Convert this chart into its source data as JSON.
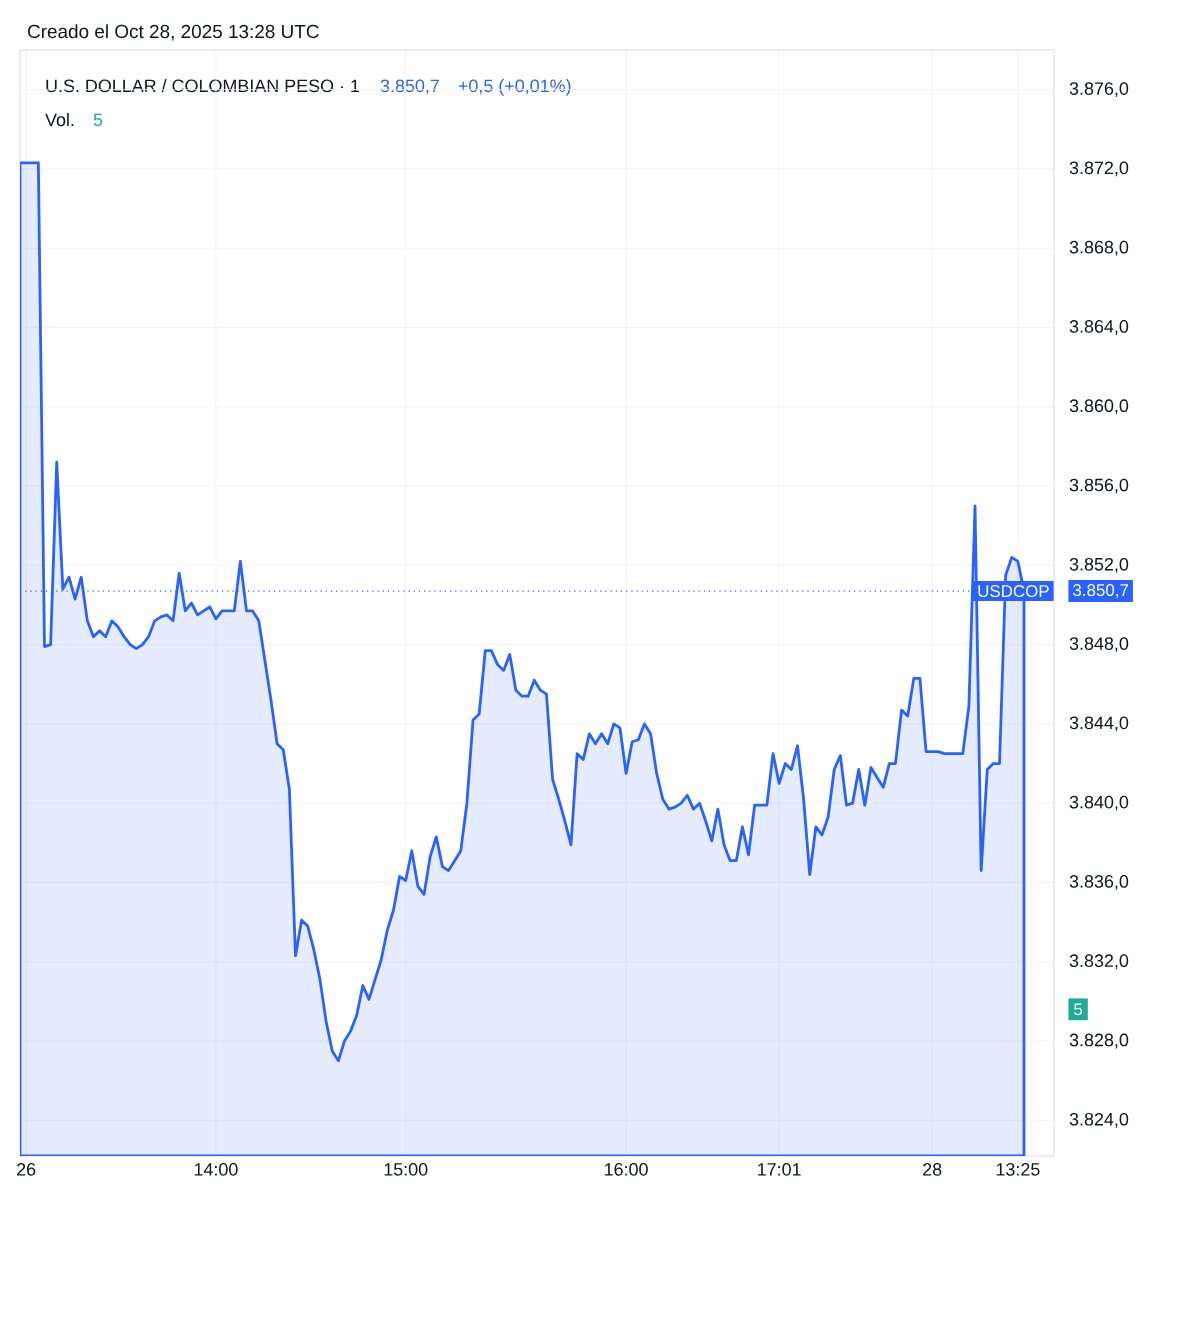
{
  "chart_data": {
    "type": "area",
    "title": "U.S. DOLLAR / COLOMBIAN PESO · 1",
    "annotations": [
      "Creado el Oct 28, 2025 13:28 UTC",
      "3.850,7",
      "+0,5 (+0,01%)",
      "Vol.",
      "5",
      "3.850,7",
      "5"
    ],
    "categories": [
      null,
      "26",
      null,
      null,
      null,
      null,
      null,
      null,
      null,
      null,
      null,
      null,
      null,
      null,
      null,
      null,
      null,
      null,
      null,
      null,
      null,
      null,
      null,
      null,
      null,
      null,
      null,
      null,
      null,
      null,
      null,
      null,
      "14:00",
      null,
      null,
      null,
      null,
      null,
      null,
      null,
      null,
      null,
      null,
      null,
      null,
      null,
      null,
      null,
      null,
      null,
      null,
      null,
      null,
      null,
      null,
      null,
      null,
      null,
      null,
      null,
      null,
      null,
      null,
      "15:00",
      null,
      null,
      null,
      null,
      null,
      null,
      null,
      null,
      null,
      null,
      null,
      null,
      null,
      null,
      null,
      null,
      null,
      null,
      null,
      null,
      null,
      null,
      null,
      null,
      null,
      null,
      null,
      null,
      null,
      null,
      null,
      null,
      null,
      null,
      null,
      "16:00",
      null,
      null,
      null,
      null,
      null,
      null,
      null,
      null,
      null,
      null,
      null,
      null,
      null,
      null,
      null,
      null,
      null,
      null,
      null,
      null,
      null,
      null,
      null,
      null,
      "17:01",
      null,
      null,
      null,
      null,
      null,
      null,
      null,
      null,
      null,
      null,
      null,
      null,
      null,
      null,
      null,
      null,
      null,
      null,
      null,
      null,
      null,
      null,
      null,
      null,
      "28",
      null,
      null,
      null,
      null,
      null,
      null,
      null,
      null,
      null,
      null,
      null,
      null,
      null,
      "13:25",
      null
    ],
    "series": [
      {
        "color": "#2962ff",
        "values": [
          3872.3,
          3872.3,
          3872.3,
          3872.3,
          3847.9,
          3848.0,
          3857.2,
          3850.8,
          3851.4,
          3850.3,
          3851.4,
          3849.2,
          3848.4,
          3848.7,
          3848.4,
          3849.2,
          3848.9,
          3848.4,
          3848.0,
          3847.8,
          3848.0,
          3848.4,
          3849.2,
          3849.4,
          3849.5,
          3849.2,
          3851.6,
          3849.7,
          3850.1,
          3849.5,
          3849.7,
          3849.9,
          3849.3,
          3849.7,
          3849.7,
          3849.7,
          3852.2,
          3849.7,
          3849.7,
          3849.2,
          3847.2,
          3845.2,
          3843.0,
          3842.7,
          3840.7,
          3832.3,
          3834.1,
          3833.8,
          3832.6,
          3831.1,
          3829.0,
          3827.5,
          3827.0,
          3828.0,
          3828.5,
          3829.3,
          3830.8,
          3830.1,
          3831.1,
          3832.1,
          3833.6,
          3834.6,
          3836.3,
          3836.1,
          3837.6,
          3835.8,
          3835.4,
          3837.3,
          3838.3,
          3836.8,
          3836.6,
          3837.1,
          3837.6,
          3840.0,
          3844.2,
          3844.5,
          3847.7,
          3847.7,
          3847.0,
          3846.7,
          3847.5,
          3845.7,
          3845.4,
          3845.4,
          3846.2,
          3845.7,
          3845.5,
          3841.2,
          3840.2,
          3839.1,
          3837.9,
          3842.5,
          3842.2,
          3843.5,
          3843.0,
          3843.5,
          3843.0,
          3844.0,
          3843.8,
          3841.5,
          3843.1,
          3843.2,
          3844.0,
          3843.5,
          3841.5,
          3840.2,
          3839.7,
          3839.8,
          3840.0,
          3840.4,
          3839.7,
          3840.0,
          3839.1,
          3838.1,
          3839.7,
          3837.9,
          3837.1,
          3837.1,
          3838.8,
          3837.4,
          3839.9,
          3839.9,
          3839.9,
          3842.5,
          3841.0,
          3842.0,
          3841.7,
          3842.9,
          3840.2,
          3836.4,
          3838.8,
          3838.4,
          3839.3,
          3841.7,
          3842.4,
          3839.9,
          3840.0,
          3841.7,
          3839.9,
          3841.8,
          3841.3,
          3840.8,
          3842.0,
          3842.0,
          3844.7,
          3844.4,
          3846.3,
          3846.3,
          3842.6,
          3842.6,
          3842.6,
          3842.5,
          3842.5,
          3842.5,
          3842.5,
          3844.9,
          3855.0,
          3836.6,
          3841.7,
          3842.0,
          3842.0,
          3851.5,
          3852.4,
          3852.2,
          3850.7
        ]
      }
    ],
    "ylim": [
      3822.2,
      3878.0
    ],
    "yticks": [
      {
        "value": 3824,
        "label": "3.824,0"
      },
      {
        "value": 3828,
        "label": "3.828,0"
      },
      {
        "value": 3832,
        "label": "3.832,0"
      },
      {
        "value": 3836,
        "label": "3.836,0"
      },
      {
        "value": 3840,
        "label": "3.840,0"
      },
      {
        "value": 3844,
        "label": "3.844,0"
      },
      {
        "value": 3848,
        "label": "3.848,0"
      },
      {
        "value": 3852,
        "label": "3.852,0"
      },
      {
        "value": 3856,
        "label": "3.856,0"
      },
      {
        "value": 3860,
        "label": "3.860,0"
      },
      {
        "value": 3864,
        "label": "3.864,0"
      },
      {
        "value": 3868,
        "label": "3.868,0"
      },
      {
        "value": 3872,
        "label": "3.872,0"
      },
      {
        "value": 3876,
        "label": "3.876,0"
      }
    ],
    "ref_lines": [
      {
        "axis": "y",
        "value": 3850.7,
        "label": "USDCOP",
        "color": "#2962ff",
        "line_style": "dotted"
      }
    ],
    "grid": true
  }
}
